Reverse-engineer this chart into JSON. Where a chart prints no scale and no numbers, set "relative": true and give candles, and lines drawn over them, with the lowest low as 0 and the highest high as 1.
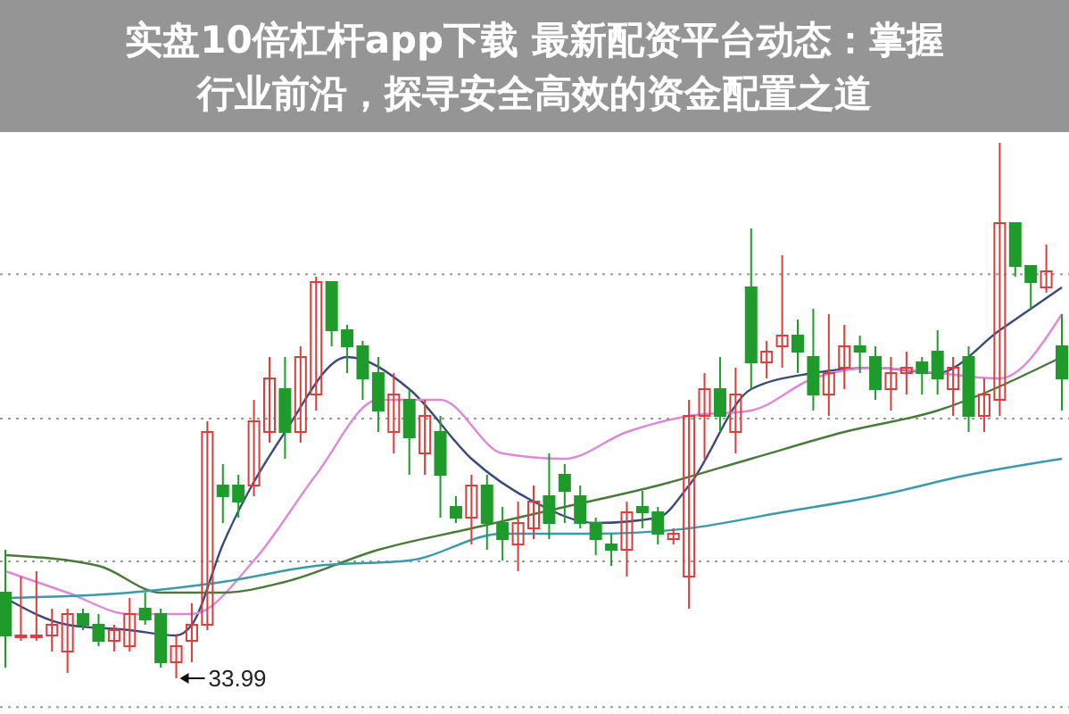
{
  "chart_data": {
    "type": "candlestick",
    "title": "实盘10倍杠杆app下载 最新配资平台动态：掌握行业前沿，探寻安全高效的资金配置之道",
    "relative": true,
    "grid": true,
    "categories": [
      null,
      null,
      null,
      null,
      null,
      null,
      null,
      null,
      null,
      null,
      null,
      null,
      null,
      null,
      null,
      null,
      null,
      null,
      null,
      null,
      null,
      null,
      null,
      null,
      null,
      null,
      null,
      null,
      null,
      null,
      null,
      null,
      null,
      null,
      null,
      null,
      null,
      null,
      null,
      null,
      null,
      null,
      null,
      null,
      null,
      null,
      null,
      null,
      null,
      null,
      null,
      null,
      null,
      null,
      null,
      null,
      null,
      null,
      null,
      null,
      null,
      null,
      null,
      null,
      null,
      null,
      null,
      null,
      null
    ],
    "ohlc": [
      [
        0.16,
        0.24,
        0.02,
        0.08
      ],
      [
        0.08,
        0.19,
        0.07,
        0.08
      ],
      [
        0.08,
        0.2,
        0.07,
        0.08
      ],
      [
        0.08,
        0.13,
        0.05,
        0.1
      ],
      [
        0.05,
        0.13,
        0.01,
        0.12
      ],
      [
        0.12,
        0.13,
        0.09,
        0.1
      ],
      [
        0.1,
        0.12,
        0.06,
        0.07
      ],
      [
        0.07,
        0.1,
        0.05,
        0.09
      ],
      [
        0.06,
        0.15,
        0.05,
        0.12
      ],
      [
        0.13,
        0.16,
        0.1,
        0.11
      ],
      [
        0.12,
        0.13,
        0.02,
        0.03
      ],
      [
        0.03,
        0.08,
        0,
        0.06
      ],
      [
        0.07,
        0.14,
        0.03,
        0.1
      ],
      [
        0.1,
        0.48,
        0.09,
        0.46
      ],
      [
        0.36,
        0.4,
        0.29,
        0.34
      ],
      [
        0.36,
        0.38,
        0.3,
        0.33
      ],
      [
        0.36,
        0.52,
        0.34,
        0.48
      ],
      [
        0.46,
        0.6,
        0.44,
        0.56
      ],
      [
        0.54,
        0.6,
        0.41,
        0.46
      ],
      [
        0.46,
        0.62,
        0.44,
        0.6
      ],
      [
        0.53,
        0.75,
        0.5,
        0.74
      ],
      [
        0.74,
        0.74,
        0.62,
        0.65
      ],
      [
        0.65,
        0.66,
        0.57,
        0.62
      ],
      [
        0.62,
        0.63,
        0.52,
        0.56
      ],
      [
        0.57,
        0.6,
        0.46,
        0.5
      ],
      [
        0.46,
        0.57,
        0.42,
        0.53
      ],
      [
        0.52,
        0.54,
        0.38,
        0.45
      ],
      [
        0.42,
        0.52,
        0.38,
        0.49
      ],
      [
        0.46,
        0.49,
        0.3,
        0.38
      ],
      [
        0.32,
        0.34,
        0.29,
        0.3
      ],
      [
        0.3,
        0.38,
        0.25,
        0.36
      ],
      [
        0.36,
        0.38,
        0.24,
        0.29
      ],
      [
        0.29,
        0.32,
        0.22,
        0.26
      ],
      [
        0.25,
        0.33,
        0.2,
        0.29
      ],
      [
        0.28,
        0.36,
        0.26,
        0.33
      ],
      [
        0.34,
        0.42,
        0.26,
        0.29
      ],
      [
        0.38,
        0.4,
        0.29,
        0.35
      ],
      [
        0.34,
        0.36,
        0.28,
        0.29
      ],
      [
        0.29,
        0.3,
        0.23,
        0.26
      ],
      [
        0.25,
        0.27,
        0.21,
        0.24
      ],
      [
        0.24,
        0.33,
        0.19,
        0.31
      ],
      [
        0.32,
        0.35,
        0.28,
        0.31
      ],
      [
        0.31,
        0.32,
        0.25,
        0.27
      ],
      [
        0.26,
        0.28,
        0.25,
        0.27
      ],
      [
        0.19,
        0.52,
        0.13,
        0.49
      ],
      [
        0.49,
        0.57,
        0.41,
        0.54
      ],
      [
        0.54,
        0.6,
        0.46,
        0.49
      ],
      [
        0.46,
        0.58,
        0.42,
        0.53
      ],
      [
        0.73,
        0.84,
        0.54,
        0.59
      ],
      [
        0.59,
        0.63,
        0.56,
        0.61
      ],
      [
        0.62,
        0.79,
        0.58,
        0.64
      ],
      [
        0.64,
        0.67,
        0.57,
        0.61
      ],
      [
        0.6,
        0.69,
        0.5,
        0.53
      ],
      [
        0.53,
        0.68,
        0.49,
        0.57
      ],
      [
        0.58,
        0.66,
        0.54,
        0.62
      ],
      [
        0.62,
        0.64,
        0.57,
        0.61
      ],
      [
        0.6,
        0.62,
        0.52,
        0.54
      ],
      [
        0.54,
        0.6,
        0.5,
        0.57
      ],
      [
        0.57,
        0.61,
        0.53,
        0.58
      ],
      [
        0.59,
        0.6,
        0.53,
        0.57
      ],
      [
        0.61,
        0.65,
        0.53,
        0.56
      ],
      [
        0.54,
        0.6,
        0.49,
        0.58
      ],
      [
        0.6,
        0.62,
        0.46,
        0.49
      ],
      [
        0.49,
        0.56,
        0.46,
        0.53
      ],
      [
        0.52,
        1,
        0.49,
        0.85
      ],
      [
        0.85,
        0.85,
        0.75,
        0.77
      ],
      [
        0.77,
        0.77,
        0.69,
        0.74
      ],
      [
        0.73,
        0.81,
        0.72,
        0.76
      ],
      [
        0.62,
        0.68,
        0.5,
        0.56
      ]
    ],
    "colors": [
      "#1f9b2b",
      "#e03c3c",
      "#e03c3c",
      "#e03c3c",
      "#e03c3c",
      "#1f9b2b",
      "#1f9b2b",
      "#e03c3c",
      "#e03c3c",
      "#1f9b2b",
      "#1f9b2b",
      "#e03c3c",
      "#e03c3c",
      "#e03c3c",
      "#1f9b2b",
      "#1f9b2b",
      "#e03c3c",
      "#e03c3c",
      "#1f9b2b",
      "#e03c3c",
      "#e03c3c",
      "#1f9b2b",
      "#1f9b2b",
      "#1f9b2b",
      "#1f9b2b",
      "#e03c3c",
      "#1f9b2b",
      "#e03c3c",
      "#1f9b2b",
      "#1f9b2b",
      "#e03c3c",
      "#1f9b2b",
      "#1f9b2b",
      "#e03c3c",
      "#e03c3c",
      "#1f9b2b",
      "#1f9b2b",
      "#1f9b2b",
      "#1f9b2b",
      "#1f9b2b",
      "#e03c3c",
      "#1f9b2b",
      "#1f9b2b",
      "#e03c3c",
      "#e03c3c",
      "#e03c3c",
      "#1f9b2b",
      "#e03c3c",
      "#1f9b2b",
      "#e03c3c",
      "#e03c3c",
      "#1f9b2b",
      "#1f9b2b",
      "#e03c3c",
      "#e03c3c",
      "#1f9b2b",
      "#1f9b2b",
      "#e03c3c",
      "#e03c3c",
      "#1f9b2b",
      "#1f9b2b",
      "#e03c3c",
      "#1f9b2b",
      "#e03c3c",
      "#e03c3c",
      "#1f9b2b",
      "#1f9b2b",
      "#e03c3c",
      "#1f9b2b"
    ],
    "series": [
      {
        "type": "line",
        "color": "#3a4a7a",
        "values": [
          0.15,
          null,
          null,
          null,
          0.1,
          null,
          null,
          null,
          0.09,
          null,
          null,
          0.08,
          0.1,
          null,
          0.25,
          null,
          null,
          null,
          0.46,
          null,
          null,
          null,
          0.6,
          null,
          null,
          null,
          0.54,
          null,
          null,
          null,
          0.41,
          null,
          null,
          null,
          0.33,
          null,
          null,
          null,
          0.29,
          null,
          null,
          null,
          0.3,
          null,
          0.36,
          null,
          null,
          null,
          0.54,
          null,
          null,
          null,
          0.57,
          null,
          null,
          null,
          0.58,
          null,
          null,
          null,
          0.57,
          null,
          null,
          null,
          0.65,
          null,
          null,
          null,
          0.73
        ]
      },
      {
        "type": "line",
        "color": "#e088d8",
        "values": [
          0.2,
          null,
          null,
          null,
          0.16,
          null,
          null,
          null,
          0.12,
          null,
          null,
          null,
          0.12,
          null,
          null,
          null,
          0.22,
          null,
          null,
          null,
          0.38,
          null,
          null,
          null,
          0.52,
          null,
          null,
          null,
          0.52,
          null,
          null,
          null,
          0.42,
          null,
          null,
          null,
          0.41,
          null,
          null,
          null,
          0.46,
          null,
          null,
          null,
          0.49,
          null,
          null,
          null,
          0.5,
          null,
          null,
          null,
          0.56,
          null,
          null,
          null,
          0.58,
          null,
          null,
          null,
          0.57,
          null,
          null,
          null,
          0.56,
          null,
          null,
          null,
          0.68
        ]
      },
      {
        "type": "line",
        "color": "#4a7a3a",
        "values": [
          0.23,
          null,
          null,
          null,
          null,
          null,
          0.21,
          null,
          null,
          null,
          0.16,
          null,
          null,
          null,
          0.16,
          null,
          null,
          null,
          0.18,
          null,
          null,
          null,
          null,
          null,
          0.24,
          null,
          null,
          null,
          null,
          null,
          0.28,
          null,
          null,
          null,
          null,
          null,
          0.32,
          null,
          null,
          null,
          null,
          null,
          0.36,
          null,
          null,
          null,
          null,
          null,
          0.41,
          null,
          null,
          null,
          null,
          null,
          0.46,
          null,
          null,
          null,
          null,
          null,
          0.5,
          null,
          null,
          null,
          null,
          null,
          null,
          null,
          0.6
        ]
      },
      {
        "type": "line",
        "color": "#3a9aaa",
        "values": [
          0.15,
          null,
          null,
          null,
          null,
          null,
          null,
          null,
          0.16,
          null,
          null,
          null,
          null,
          null,
          0.18,
          null,
          null,
          null,
          null,
          null,
          0.21,
          null,
          null,
          null,
          null,
          null,
          0.22,
          null,
          null,
          null,
          null,
          null,
          0.27,
          null,
          null,
          null,
          null,
          null,
          0.27,
          null,
          null,
          null,
          null,
          null,
          0.28,
          null,
          null,
          null,
          null,
          null,
          0.31,
          null,
          null,
          null,
          null,
          null,
          0.34,
          null,
          null,
          null,
          null,
          null,
          0.38,
          null,
          null,
          null,
          null,
          null,
          0.41
        ]
      }
    ],
    "annotations": [
      "33.99"
    ]
  }
}
